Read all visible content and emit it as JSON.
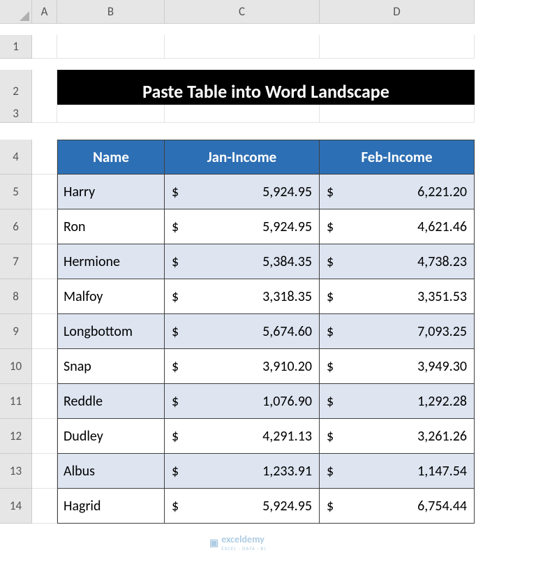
{
  "columns": [
    "A",
    "B",
    "C",
    "D"
  ],
  "rows": [
    "1",
    "2",
    "3",
    "4",
    "5",
    "6",
    "7",
    "8",
    "9",
    "10",
    "11",
    "12",
    "13",
    "14"
  ],
  "title": "Paste Table into Word Landscape",
  "headers": {
    "name": "Name",
    "jan": "Jan-Income",
    "feb": "Feb-Income"
  },
  "currency_symbol": "$",
  "data": [
    {
      "name": "Harry",
      "jan": "5,924.95",
      "feb": "6,221.20"
    },
    {
      "name": "Ron",
      "jan": "5,924.95",
      "feb": "4,621.46"
    },
    {
      "name": "Hermione",
      "jan": "5,384.35",
      "feb": "4,738.23"
    },
    {
      "name": "Malfoy",
      "jan": "3,318.35",
      "feb": "3,351.53"
    },
    {
      "name": "Longbottom",
      "jan": "5,674.60",
      "feb": "7,093.25"
    },
    {
      "name": "Snap",
      "jan": "3,910.20",
      "feb": "3,949.30"
    },
    {
      "name": "Reddle",
      "jan": "1,076.90",
      "feb": "1,292.28"
    },
    {
      "name": "Dudley",
      "jan": "4,291.13",
      "feb": "3,261.26"
    },
    {
      "name": "Albus",
      "jan": "1,233.91",
      "feb": "1,147.54"
    },
    {
      "name": "Hagrid",
      "jan": "5,924.95",
      "feb": "6,754.44"
    }
  ],
  "colors": {
    "header_bg": "#2d6fb4",
    "band_bg": "#dee5f1",
    "row_bg": "#ffffff",
    "title_bg": "#000000",
    "title_fg": "#ffffff",
    "grid_head_bg": "#e6e6e6"
  },
  "row_heights": {
    "r1": 34,
    "r2": 62,
    "r3": 26,
    "default": 50
  },
  "watermark": {
    "brand": "exceldemy",
    "tagline": "EXCEL · DATA · BI"
  }
}
